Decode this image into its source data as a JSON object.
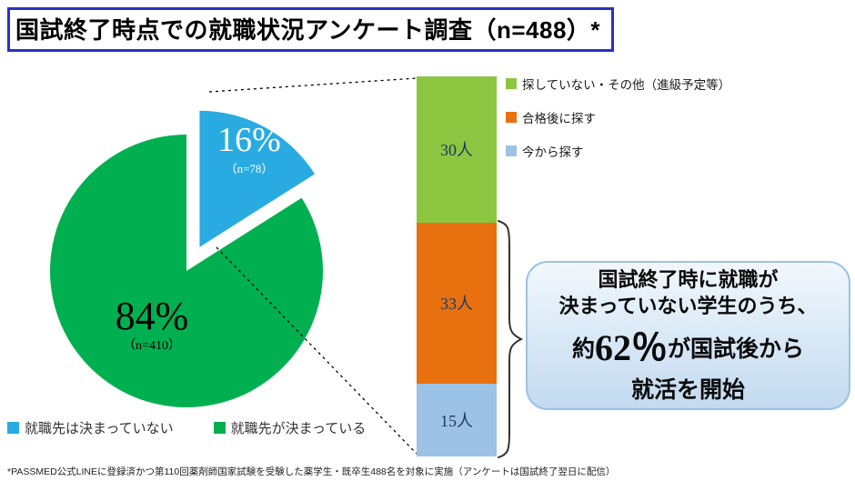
{
  "title": "国試終了時点での就職状況アンケート調査（n=488）*",
  "footnote": "*PASSMED公式LINEに登録済かつ第110回薬剤師国家試験を受験した薬学生・既卒生488名を対象に実施（アンケートは国試終了翌日に配信）",
  "colors": {
    "title_border": "#2832C3",
    "pie_decided_green": "#00B050",
    "pie_undecided_blue": "#29ABE2",
    "bar_green": "#8CC540",
    "bar_orange": "#E8700F",
    "bar_lightblue": "#9CC2E5",
    "bar_label_navy": "#1F3864",
    "callout_border": "#9CC2E5"
  },
  "chart_data": [
    {
      "type": "pie",
      "title": "国試終了時点での就職状況",
      "total_n": 488,
      "slices": [
        {
          "label": "就職先が決まっている",
          "pct": 84,
          "n": 410,
          "value_label": "84%",
          "n_label": "（n=410）",
          "color": "#00B050",
          "exploded": false
        },
        {
          "label": "就職先は決まっていない",
          "pct": 16,
          "n": 78,
          "value_label": "16%",
          "n_label": "（n=78）",
          "color": "#29ABE2",
          "exploded": true
        }
      ],
      "legend_position": "bottom-left"
    },
    {
      "type": "bar",
      "stacked": true,
      "title": "就職先は決まっていない（n=78）の内訳",
      "categories": [
        "n=78"
      ],
      "series": [
        {
          "name": "探していない・その他（進級予定等）",
          "value": 30,
          "label": "30人",
          "color": "#8CC540"
        },
        {
          "name": "合格後に探す",
          "value": 33,
          "label": "33人",
          "color": "#E8700F"
        },
        {
          "name": "今から探す",
          "value": 15,
          "label": "15人",
          "color": "#9CC2E5"
        }
      ],
      "legend_position": "right",
      "ylim": [
        0,
        78
      ]
    }
  ],
  "callout": {
    "line1": "国試終了時に就職が",
    "line2": "決まっていない学生のうち、",
    "line3_prefix": "約",
    "line3_big": "62％",
    "line3_suffix": "が国試後から",
    "line4": "就活を開始"
  }
}
